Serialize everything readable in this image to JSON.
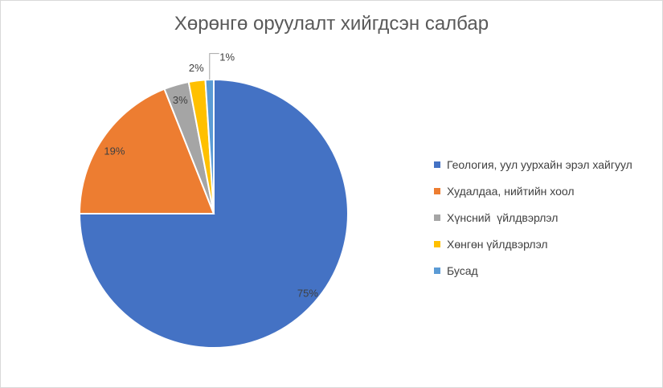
{
  "chart_data": {
    "type": "pie",
    "title": "Хөрөнгө оруулалт хийгдсэн салбар",
    "legend_position": "right",
    "slices": [
      {
        "label": "Геология, уул уурхайн эрэл хайгуул",
        "value": 75,
        "display": "75%",
        "color": "#4472c4"
      },
      {
        "label": "Худалдаа, нийтийн хоол",
        "value": 19,
        "display": "19%",
        "color": "#ed7d31"
      },
      {
        "label": "Хүнсний  үйлдвэрлэл",
        "value": 3,
        "display": "3%",
        "color": "#a5a5a5"
      },
      {
        "label": "Хөнгөн үйлдвэрлэл",
        "value": 2,
        "display": "2%",
        "color": "#ffc000"
      },
      {
        "label": "Бусад",
        "value": 1,
        "display": "1%",
        "color": "#5b9bd5"
      }
    ]
  }
}
